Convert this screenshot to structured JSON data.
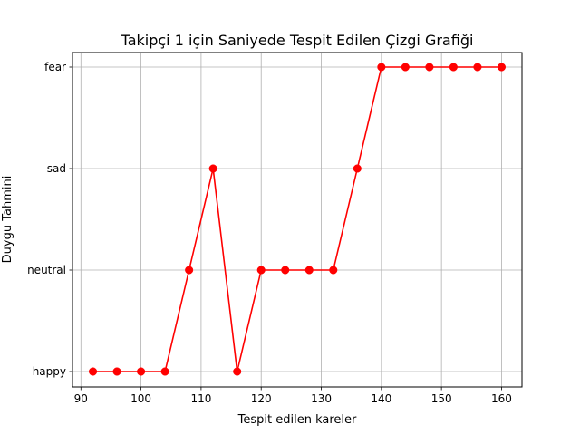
{
  "chart_data": {
    "type": "line",
    "title": "Takipçi 1 için Saniyede Tespit Edilen Çizgi Grafiği",
    "xlabel": "Tespit edilen kareler",
    "ylabel": "Duygu Tahmini",
    "xlim": [
      88.6,
      163.4
    ],
    "x_ticks": [
      90,
      100,
      110,
      120,
      130,
      140,
      150,
      160
    ],
    "y_categories": [
      "happy",
      "neutral",
      "sad",
      "fear"
    ],
    "grid": true,
    "series": [
      {
        "color": "#ff0000",
        "marker": "circle",
        "points": [
          {
            "x": 92,
            "y": "happy"
          },
          {
            "x": 96,
            "y": "happy"
          },
          {
            "x": 100,
            "y": "happy"
          },
          {
            "x": 104,
            "y": "happy"
          },
          {
            "x": 108,
            "y": "neutral"
          },
          {
            "x": 112,
            "y": "sad"
          },
          {
            "x": 116,
            "y": "happy"
          },
          {
            "x": 120,
            "y": "neutral"
          },
          {
            "x": 124,
            "y": "neutral"
          },
          {
            "x": 128,
            "y": "neutral"
          },
          {
            "x": 132,
            "y": "neutral"
          },
          {
            "x": 136,
            "y": "sad"
          },
          {
            "x": 140,
            "y": "fear"
          },
          {
            "x": 144,
            "y": "fear"
          },
          {
            "x": 148,
            "y": "fear"
          },
          {
            "x": 152,
            "y": "fear"
          },
          {
            "x": 156,
            "y": "fear"
          },
          {
            "x": 160,
            "y": "fear"
          }
        ]
      }
    ]
  }
}
